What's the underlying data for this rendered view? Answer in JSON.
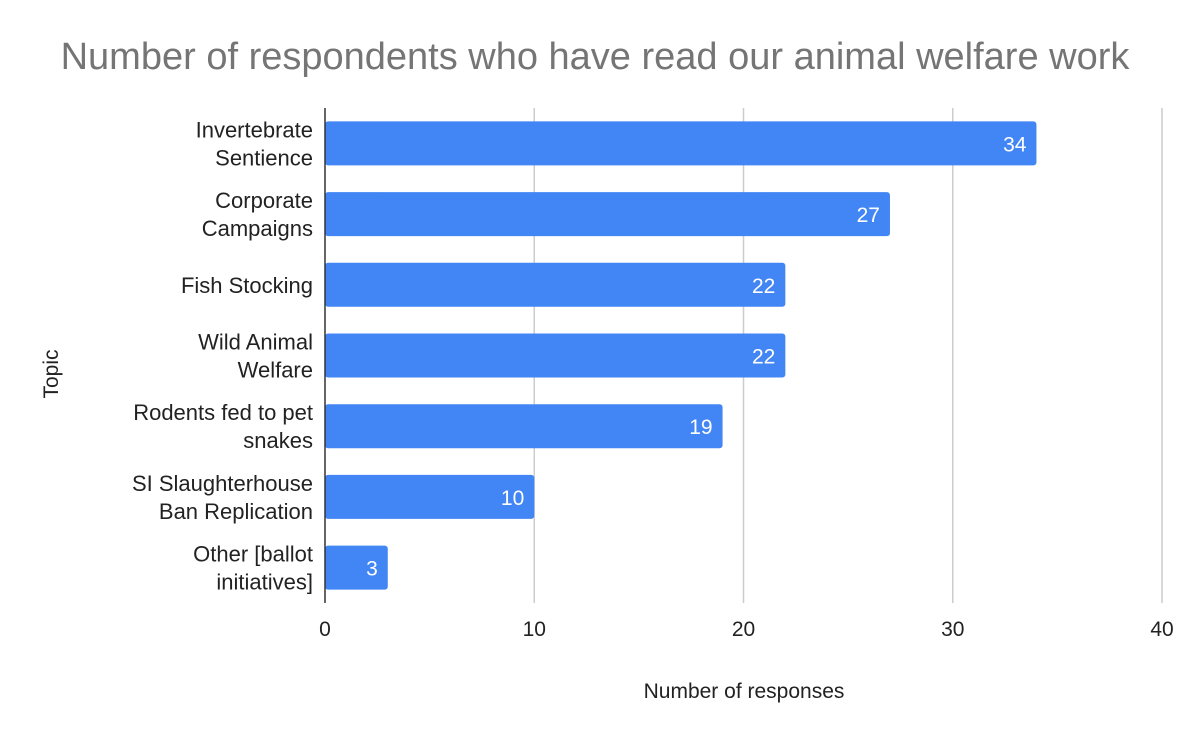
{
  "chart_data": {
    "type": "bar",
    "orientation": "horizontal",
    "title": "Number of respondents who have read our animal welfare work",
    "xlabel": "Number of responses",
    "ylabel": "Topic",
    "categories": [
      [
        "Invertebrate",
        "Sentience"
      ],
      [
        "Corporate",
        "Campaigns"
      ],
      [
        "Fish Stocking"
      ],
      [
        "Wild Animal",
        "Welfare"
      ],
      [
        "Rodents fed to pet",
        "snakes"
      ],
      [
        "SI Slaughterhouse",
        "Ban Replication"
      ],
      [
        "Other [ballot",
        "initiatives]"
      ]
    ],
    "values": [
      34,
      27,
      22,
      22,
      19,
      10,
      3
    ],
    "xlim": [
      0,
      40
    ],
    "xticks": [
      0,
      10,
      20,
      30,
      40
    ],
    "grid": "vertical",
    "legend": "none",
    "bar_color": "#4285f4",
    "data_labels": "inside-end"
  }
}
